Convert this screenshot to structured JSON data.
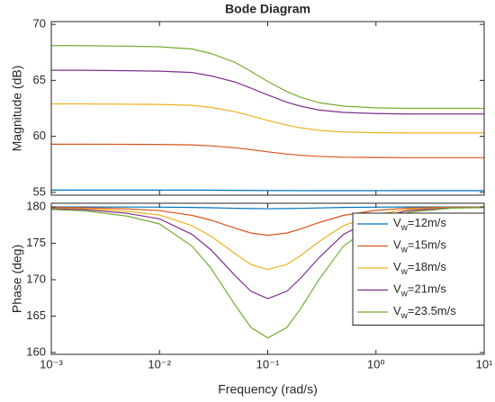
{
  "chart_data": [
    {
      "type": "line",
      "title": "Bode Diagram",
      "ylabel": "Magnitude (dB)",
      "xscale": "log",
      "x": [
        0.001,
        0.002,
        0.005,
        0.01,
        0.02,
        0.03,
        0.05,
        0.07,
        0.1,
        0.15,
        0.2,
        0.3,
        0.5,
        1,
        2,
        5,
        10
      ],
      "xlim": [
        0.001,
        10
      ],
      "xticks": [
        0.001,
        0.01,
        0.1,
        1,
        10
      ],
      "ylim": [
        54.75,
        70.25
      ],
      "yticks": [
        55,
        60,
        65,
        70
      ],
      "series": [
        {
          "color": "#0072BD",
          "values": [
            55.2,
            55.2,
            55.2,
            55.2,
            55.2,
            55.19,
            55.18,
            55.17,
            55.16,
            55.16,
            55.15,
            55.15,
            55.15,
            55.15,
            55.15,
            55.15,
            55.15
          ]
        },
        {
          "color": "#D95319",
          "values": [
            59.3,
            59.3,
            59.29,
            59.28,
            59.24,
            59.15,
            58.98,
            58.81,
            58.62,
            58.42,
            58.32,
            58.21,
            58.14,
            58.11,
            58.1,
            58.1,
            58.1
          ]
        },
        {
          "color": "#EDB120",
          "values": [
            62.9,
            62.9,
            62.87,
            62.85,
            62.77,
            62.58,
            62.2,
            61.83,
            61.42,
            61.0,
            60.77,
            60.53,
            60.39,
            60.32,
            60.3,
            60.3,
            60.3
          ]
        },
        {
          "color": "#7E2F8E",
          "values": [
            65.9,
            65.9,
            65.86,
            65.82,
            65.7,
            65.4,
            64.85,
            64.3,
            63.7,
            63.05,
            62.7,
            62.35,
            62.14,
            62.04,
            62.0,
            62.0,
            62.0
          ]
        },
        {
          "color": "#77AC30",
          "values": [
            68.1,
            68.1,
            68.05,
            68.0,
            67.8,
            67.4,
            66.6,
            65.8,
            64.9,
            64.0,
            63.5,
            63.0,
            62.7,
            62.55,
            62.5,
            62.5,
            62.5
          ]
        }
      ]
    },
    {
      "type": "line",
      "xlabel": "Frequency  (rad/s)",
      "ylabel": "Phase (deg)",
      "xscale": "log",
      "legend": "upper right",
      "x": [
        0.001,
        0.002,
        0.005,
        0.01,
        0.02,
        0.03,
        0.05,
        0.07,
        0.1,
        0.15,
        0.2,
        0.3,
        0.5,
        1,
        2,
        5,
        10
      ],
      "xlim": [
        0.001,
        10
      ],
      "xticks": [
        {
          "value": 0.001,
          "label": "10⁻³"
        },
        {
          "value": 0.01,
          "label": "10⁻²"
        },
        {
          "value": 0.1,
          "label": "10⁻¹"
        },
        {
          "value": 1,
          "label": "10⁰"
        },
        {
          "value": 10,
          "label": "10¹"
        }
      ],
      "ylim": [
        159.75,
        180.5
      ],
      "yticks": [
        160,
        165,
        170,
        175,
        180
      ],
      "series": [
        {
          "name": "Vw=12m/s",
          "color": "#0072BD",
          "values": [
            180,
            179.99,
            179.98,
            179.97,
            179.93,
            179.88,
            179.81,
            179.77,
            179.75,
            179.77,
            179.8,
            179.86,
            179.93,
            179.97,
            179.99,
            180,
            180
          ]
        },
        {
          "name": "Vw=15m/s",
          "color": "#D95319",
          "values": [
            179.92,
            179.88,
            179.73,
            179.49,
            178.83,
            178.17,
            177.08,
            176.41,
            176.1,
            176.41,
            176.96,
            177.86,
            178.83,
            179.53,
            179.84,
            179.96,
            179.98
          ]
        },
        {
          "name": "Vw=18m/s",
          "color": "#EDB120",
          "values": [
            179.83,
            179.74,
            179.4,
            178.88,
            177.42,
            175.96,
            173.55,
            172.09,
            171.4,
            172.09,
            173.29,
            175.27,
            177.42,
            178.97,
            179.66,
            179.91,
            179.96
          ]
        },
        {
          "name": "Vw=21m/s",
          "color": "#7E2F8E",
          "values": [
            179.75,
            179.62,
            179.12,
            178.36,
            176.22,
            174.08,
            170.55,
            168.41,
            167.4,
            168.41,
            170.17,
            173.07,
            176.22,
            178.49,
            179.5,
            179.87,
            179.94
          ]
        },
        {
          "name": "Vw=23.5m/s",
          "color": "#77AC30",
          "values": [
            179.64,
            179.46,
            178.74,
            177.66,
            174.6,
            171.54,
            166.5,
            163.44,
            162.0,
            163.44,
            165.96,
            170.1,
            174.6,
            177.84,
            179.28,
            179.82,
            179.91
          ]
        }
      ]
    }
  ]
}
